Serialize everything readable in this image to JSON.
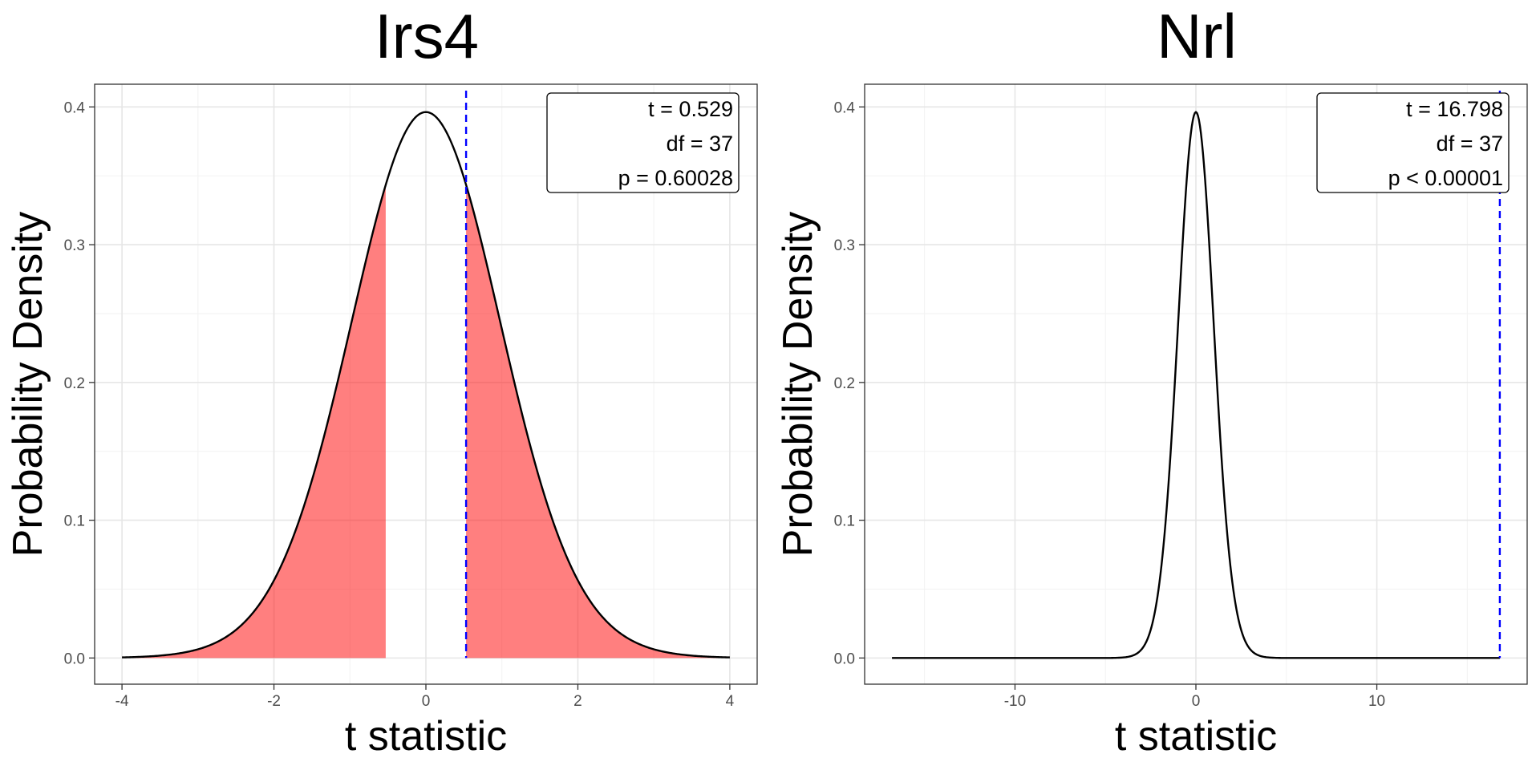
{
  "chart_data": [
    {
      "type": "line",
      "title": "Irs4",
      "xlabel": "t statistic",
      "ylabel": "Probability Density",
      "distribution": "student-t",
      "df": 37,
      "t": 0.529,
      "xlim": [
        -4,
        4
      ],
      "ylim": [
        0.0,
        0.4
      ],
      "x_ticks": [
        "-4",
        "-2",
        "0",
        "2",
        "4"
      ],
      "x_tick_values": [
        -4,
        -2,
        0,
        2,
        4
      ],
      "y_ticks": [
        "0.0",
        "0.1",
        "0.2",
        "0.3",
        "0.4"
      ],
      "y_tick_values": [
        0.0,
        0.1,
        0.2,
        0.3,
        0.4
      ],
      "shaded_tails": true,
      "shade_color": "#ff0000",
      "line_color": "#0000ff",
      "grid": true,
      "legend_placement": "top-right",
      "annotation": [
        "t = 0.529",
        "df = 37",
        "p = 0.60028"
      ]
    },
    {
      "type": "line",
      "title": "Nrl",
      "xlabel": "t statistic",
      "ylabel": "Probability Density",
      "distribution": "student-t",
      "df": 37,
      "t": 16.798,
      "xlim": [
        -16.798,
        16.798
      ],
      "ylim": [
        0.0,
        0.4
      ],
      "x_ticks": [
        "-10",
        "0",
        "10"
      ],
      "x_tick_values": [
        -10,
        0,
        10
      ],
      "y_ticks": [
        "0.0",
        "0.1",
        "0.2",
        "0.3",
        "0.4"
      ],
      "y_tick_values": [
        0.0,
        0.1,
        0.2,
        0.3,
        0.4
      ],
      "shaded_tails": true,
      "shade_color": "#ff0000",
      "line_color": "#0000ff",
      "grid": true,
      "legend_placement": "top-right",
      "annotation": [
        "t = 16.798",
        "df = 37",
        "p < 0.00001"
      ]
    }
  ]
}
